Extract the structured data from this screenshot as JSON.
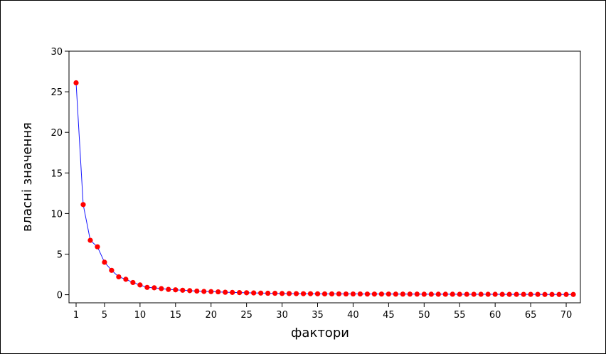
{
  "chart_data": {
    "type": "line",
    "title": "",
    "xlabel": "фактори",
    "ylabel": "власні значення",
    "xlim": [
      0,
      72
    ],
    "ylim": [
      -1,
      30
    ],
    "x_ticks": [
      "1",
      "5",
      "10",
      "15",
      "20",
      "25",
      "30",
      "35",
      "40",
      "45",
      "50",
      "55",
      "60",
      "65",
      "70"
    ],
    "y_ticks": [
      "0",
      "5",
      "10",
      "15",
      "20",
      "25",
      "30"
    ],
    "grid": false,
    "legend": "none",
    "line_color": "#1515ff",
    "marker_color": "#ff0000",
    "series": [
      {
        "x": [
          1,
          2,
          3,
          4,
          5,
          6,
          7,
          8,
          9,
          10,
          11,
          12,
          13,
          14,
          15,
          16,
          17,
          18,
          19,
          20,
          21,
          22,
          23,
          24,
          25,
          26,
          27,
          28,
          29,
          30,
          31,
          32,
          33,
          34,
          35,
          36,
          37,
          38,
          39,
          40,
          41,
          42,
          43,
          44,
          45,
          46,
          47,
          48,
          49,
          50,
          51,
          52,
          53,
          54,
          55,
          56,
          57,
          58,
          59,
          60,
          61,
          62,
          63,
          64,
          65,
          66,
          67,
          68,
          69,
          70,
          71
        ],
        "values": [
          26.1,
          11.1,
          6.7,
          5.9,
          4.0,
          3.0,
          2.2,
          1.9,
          1.5,
          1.2,
          0.9,
          0.85,
          0.75,
          0.65,
          0.6,
          0.55,
          0.5,
          0.45,
          0.4,
          0.38,
          0.35,
          0.3,
          0.28,
          0.26,
          0.24,
          0.22,
          0.2,
          0.18,
          0.17,
          0.15,
          0.14,
          0.13,
          0.12,
          0.12,
          0.11,
          0.1,
          0.1,
          0.1,
          0.09,
          0.09,
          0.09,
          0.08,
          0.08,
          0.08,
          0.08,
          0.07,
          0.07,
          0.07,
          0.07,
          0.06,
          0.06,
          0.06,
          0.06,
          0.06,
          0.05,
          0.05,
          0.05,
          0.05,
          0.05,
          0.05,
          0.04,
          0.04,
          0.04,
          0.04,
          0.04,
          0.04,
          0.03,
          0.03,
          0.03,
          0.03,
          0.03
        ]
      }
    ]
  }
}
